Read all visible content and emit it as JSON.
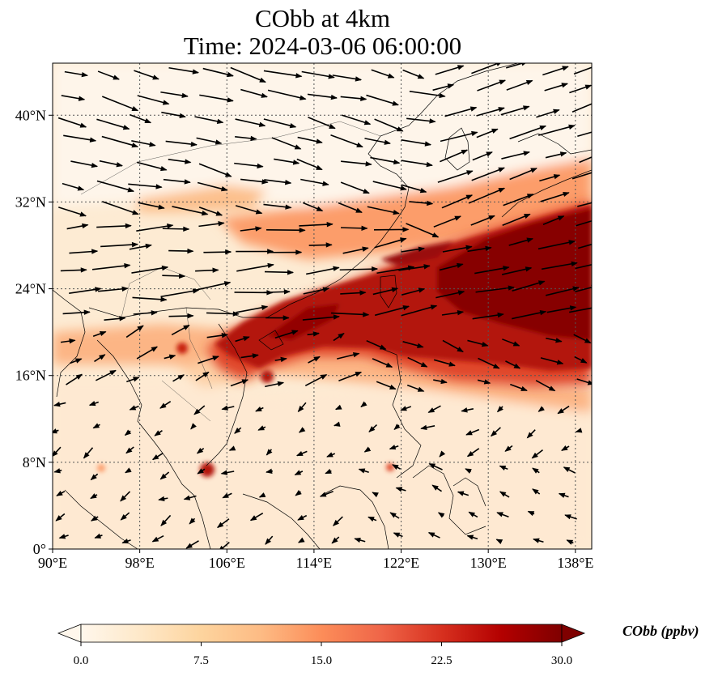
{
  "title": {
    "line1": "CObb at 4km",
    "line2": "Time: 2024-03-06 06:00:00"
  },
  "map": {
    "lon_range": [
      90,
      139.5
    ],
    "lat_range": [
      0,
      44.8
    ],
    "x_ticks": [
      "90°E",
      "98°E",
      "106°E",
      "114°E",
      "122°E",
      "130°E",
      "138°E"
    ],
    "x_tick_values": [
      90,
      98,
      106,
      114,
      122,
      130,
      138
    ],
    "y_ticks": [
      "0°",
      "8°N",
      "16°N",
      "24°N",
      "32°N",
      "40°N"
    ],
    "y_tick_values": [
      0,
      8,
      16,
      24,
      32,
      40
    ],
    "gridlines": true,
    "wind_vectors": "black arrows",
    "coastlines": true,
    "plume": "high CObb band from Indochina/South China across Taiwan toward the western Pacific (130–139°E, 20–32°N)"
  },
  "colorbar": {
    "label": "CObb (ppbv)",
    "ticks": [
      "0.0",
      "7.5",
      "15.0",
      "22.5",
      "30.0"
    ],
    "min": 0,
    "max": 30,
    "colormap": "OrRd",
    "colors": [
      "#fff7ec",
      "#fee8c8",
      "#fdd49e",
      "#fdbb84",
      "#fc8d59",
      "#ef6548",
      "#d7301f",
      "#b30000",
      "#7f0000"
    ],
    "extend": "both"
  }
}
